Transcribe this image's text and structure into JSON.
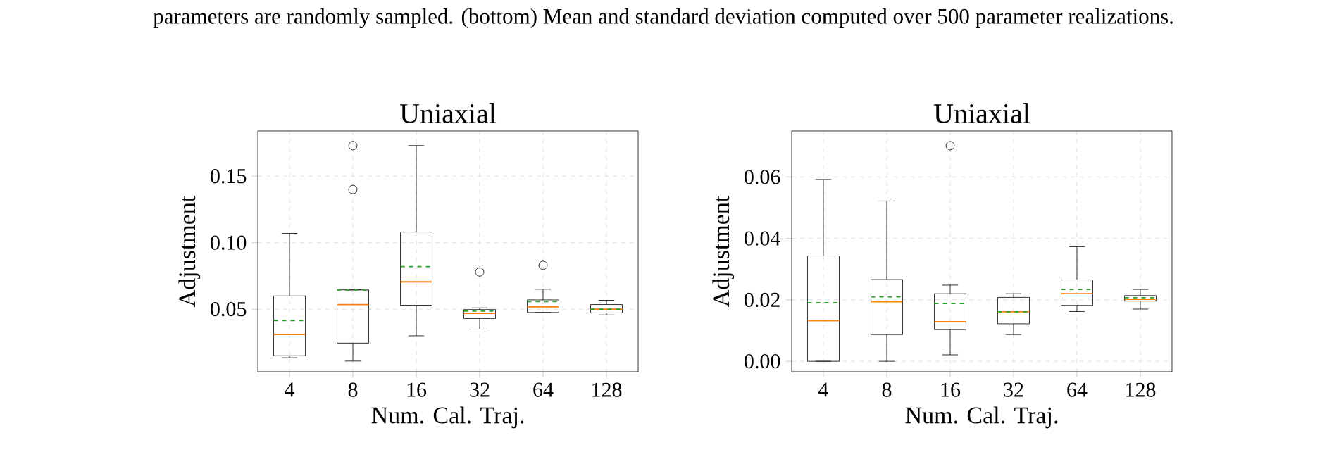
{
  "chart_data": [
    {
      "type": "box",
      "title": "Uniaxial",
      "xlabel": "Num. Cal. Traj.",
      "ylabel": "Adjustment",
      "grid": true,
      "annotations": [
        "parameters are randomly sampled. (bottom) Mean and standard deviation computed over 500 parameter realizations."
      ],
      "categories": [
        "4",
        "8",
        "16",
        "32",
        "64",
        "128"
      ],
      "ylim": [
        0.003,
        0.184
      ],
      "yticks": [
        0.05,
        {
          "value": 0.1,
          "label": "0.10"
        },
        0.15
      ],
      "boxes": [
        {
          "low": 0.0135,
          "q1": 0.015,
          "median": 0.031,
          "q3": 0.06,
          "high": 0.107,
          "mean": 0.0415
        },
        {
          "low": 0.011,
          "q1": 0.0245,
          "median": 0.0535,
          "q3": 0.0645,
          "high": 0.0645,
          "mean": 0.0645,
          "outliers": [
            0.14,
            0.173
          ]
        },
        {
          "low": 0.03,
          "q1": 0.053,
          "median": 0.0706,
          "q3": 0.108,
          "high": 0.173,
          "mean": 0.082
        },
        {
          "low": 0.035,
          "q1": 0.043,
          "median": 0.0468,
          "q3": 0.0497,
          "high": 0.051,
          "mean": 0.0486,
          "outliers": [
            0.078
          ]
        },
        {
          "low": 0.0475,
          "q1": 0.0475,
          "median": 0.0518,
          "q3": 0.057,
          "high": 0.065,
          "mean": 0.0557,
          "outliers": [
            0.083
          ]
        },
        {
          "low": 0.0457,
          "q1": 0.0472,
          "median": 0.05,
          "q3": 0.0535,
          "high": 0.0567,
          "mean": 0.05
        }
      ]
    },
    {
      "type": "box",
      "title": "Uniaxial",
      "xlabel": "Num. Cal. Traj.",
      "ylabel": "Adjustment",
      "grid": true,
      "categories": [
        "4",
        "8",
        "16",
        "32",
        "64",
        "128"
      ],
      "ylim": [
        -0.0034,
        0.075
      ],
      "yticks": [
        {
          "value": 0,
          "label": "0.00"
        },
        0.02,
        0.04,
        0.06
      ],
      "boxes": [
        {
          "low": 0,
          "q1": 0,
          "median": 0.0132,
          "q3": 0.0343,
          "high": 0.0592,
          "mean": 0.0191
        },
        {
          "low": 0,
          "q1": 0.0087,
          "median": 0.0194,
          "q3": 0.0266,
          "high": 0.0522,
          "mean": 0.021
        },
        {
          "low": 0.0021,
          "q1": 0.0103,
          "median": 0.0129,
          "q3": 0.022,
          "high": 0.0248,
          "mean": 0.0188,
          "outliers": [
            0.0702
          ]
        },
        {
          "low": 0.0087,
          "q1": 0.0122,
          "median": 0.0161,
          "q3": 0.0208,
          "high": 0.022,
          "mean": 0.0161
        },
        {
          "low": 0.0162,
          "q1": 0.0182,
          "median": 0.022,
          "q3": 0.0265,
          "high": 0.0373,
          "mean": 0.0234
        },
        {
          "low": 0.017,
          "q1": 0.0196,
          "median": 0.0202,
          "q3": 0.0214,
          "high": 0.0234,
          "mean": 0.0207
        }
      ]
    }
  ]
}
